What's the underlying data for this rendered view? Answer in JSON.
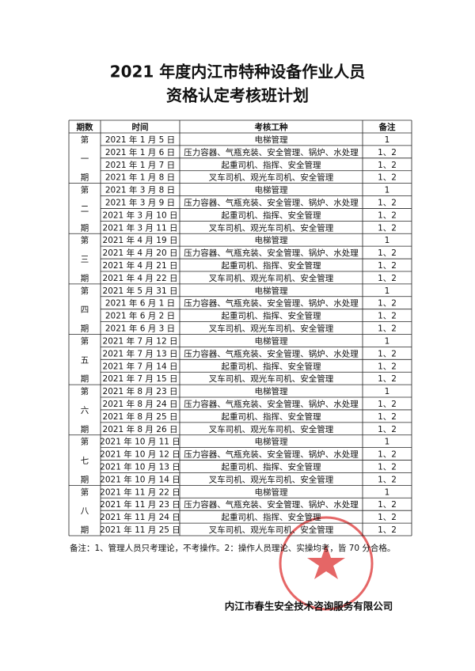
{
  "header": {
    "title_lines": [
      "2021 年度内江市特种设备作业人员",
      "资格认定考核班计划"
    ]
  },
  "table": {
    "columns": [
      "期数",
      "时间",
      "考核工种",
      "备注"
    ],
    "periods": [
      {
        "label": [
          "第",
          "一",
          "期"
        ],
        "rows": [
          {
            "date": "2021 年 1 月 5 日",
            "type": "电梯管理",
            "note": "1"
          },
          {
            "date": "2021 年 1 月 6 日",
            "type": "压力容器、气瓶充装、安全管理、锅炉、水处理",
            "note": "1、2"
          },
          {
            "date": "2021 年 1 月 7 日",
            "type": "起重司机、指挥、安全管理",
            "note": "1、2"
          },
          {
            "date": "2021 年 1 月 8 日",
            "type": "叉车司机、观光车司机、安全管理",
            "note": "1、2"
          }
        ]
      },
      {
        "label": [
          "第",
          "二",
          "期"
        ],
        "rows": [
          {
            "date": "2021 年 3 月 8 日",
            "type": "电梯管理",
            "note": "1"
          },
          {
            "date": "2021 年 3 月 9 日",
            "type": "压力容器、气瓶充装、安全管理、锅炉、水处理",
            "note": "1、2"
          },
          {
            "date": "2021 年 3 月 10 日",
            "type": "起重司机、指挥、安全管理",
            "note": "1、2"
          },
          {
            "date": "2021 年 3 月 11 日",
            "type": "叉车司机、观光车司机、安全管理",
            "note": "1、2"
          }
        ]
      },
      {
        "label": [
          "第",
          "三",
          "期"
        ],
        "rows": [
          {
            "date": "2021 年 4 月 19 日",
            "type": "电梯管理",
            "note": "1"
          },
          {
            "date": "2021 年 4 月 20 日",
            "type": "压力容器、气瓶充装、安全管理、锅炉、水处理",
            "note": "1、2"
          },
          {
            "date": "2021 年 4 月 21 日",
            "type": "起重司机、指挥、安全管理",
            "note": "1、2"
          },
          {
            "date": "2021 年 4 月 22 日",
            "type": "叉车司机、观光车司机、安全管理",
            "note": "1、2"
          }
        ]
      },
      {
        "label": [
          "第",
          "四",
          "期"
        ],
        "rows": [
          {
            "date": "2021 年 5 月 31 日",
            "type": "电梯管理",
            "note": "1"
          },
          {
            "date": "2021 年 6 月 1 日",
            "type": "压力容器、气瓶充装、安全管理、锅炉、水处理",
            "note": "1、2"
          },
          {
            "date": "2021 年 6 月 2 日",
            "type": "起重司机、指挥、安全管理",
            "note": "1、2"
          },
          {
            "date": "2021 年 6 月 3 日",
            "type": "叉车司机、观光车司机、安全管理",
            "note": "1、2"
          }
        ]
      },
      {
        "label": [
          "第",
          "五",
          "期"
        ],
        "rows": [
          {
            "date": "2021 年 7 月 12 日",
            "type": "电梯管理",
            "note": "1"
          },
          {
            "date": "2021 年 7 月 13 日",
            "type": "压力容器、气瓶充装、安全管理、锅炉、水处理",
            "note": "1、2"
          },
          {
            "date": "2021 年 7 月 14 日",
            "type": "起重司机、指挥、安全管理",
            "note": "1、2"
          },
          {
            "date": "2021 年 7 月 15 日",
            "type": "叉车司机、观光车司机、安全管理",
            "note": "1、2"
          }
        ]
      },
      {
        "label": [
          "第",
          "六",
          "期"
        ],
        "rows": [
          {
            "date": "2021 年 8 月 23 日",
            "type": "电梯管理",
            "note": "1"
          },
          {
            "date": "2021 年 8 月 24 日",
            "type": "压力容器、气瓶充装、安全管理、锅炉、水处理",
            "note": "1、2"
          },
          {
            "date": "2021 年 8 月 25 日",
            "type": "起重司机、指挥、安全管理",
            "note": "1、2"
          },
          {
            "date": "2021 年 8 月 26 日",
            "type": "叉车司机、观光车司机、安全管理",
            "note": "1、2"
          }
        ]
      },
      {
        "label": [
          "第",
          "七",
          "期"
        ],
        "rows": [
          {
            "date": "2021 年 10 月 11 日",
            "type": "电梯管理",
            "note": "1"
          },
          {
            "date": "2021 年 10 月 12 日",
            "type": "压力容器、气瓶充装、安全管理、锅炉、水处理",
            "note": "1、2"
          },
          {
            "date": "2021 年 10 月 13 日",
            "type": "起重司机、指挥、安全管理",
            "note": "1、2"
          },
          {
            "date": "2021 年 10 月 14 日",
            "type": "叉车司机、观光车司机、安全管理",
            "note": "1、2"
          }
        ]
      },
      {
        "label": [
          "第",
          "八",
          "期"
        ],
        "rows": [
          {
            "date": "2021 年 11 月 22 日",
            "type": "电梯管理",
            "note": "1"
          },
          {
            "date": "2021 年 11 月 23 日",
            "type": "压力容器、气瓶充装、安全管理、锅炉、水处理",
            "note": "1、2"
          },
          {
            "date": "2021 年 11 月 24 日",
            "type": "起重司机、指挥、安全管理",
            "note": "1、2"
          },
          {
            "date": "2021 年 11 月 25 日",
            "type": "叉车司机、观光车司机、安全管理",
            "note": "1、2"
          }
        ]
      }
    ]
  },
  "remark": "备注：1、管理人员只考理论，不考操作。2：操作人员理论、实操均考，皆 70 分合格。",
  "footer": {
    "organization": "内江市春生安全技术咨询服务有限公司"
  }
}
